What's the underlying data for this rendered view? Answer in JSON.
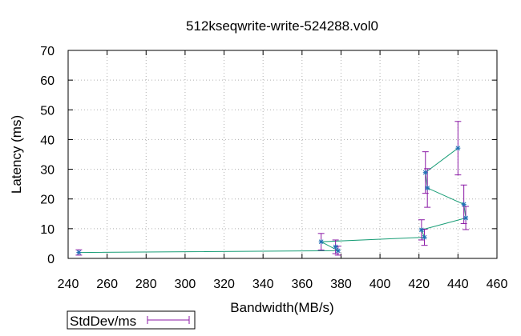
{
  "chart_data": {
    "type": "line",
    "title": "512kseqwrite-write-524288.vol0",
    "xlabel": "Bandwidth(MB/s)",
    "ylabel": "Latency (ms)",
    "xlim": [
      240,
      460
    ],
    "ylim": [
      0,
      70
    ],
    "x_ticks": [
      240,
      260,
      280,
      300,
      320,
      340,
      360,
      380,
      400,
      420,
      440,
      460
    ],
    "y_ticks": [
      0,
      10,
      20,
      30,
      40,
      50,
      60,
      70
    ],
    "grid": true,
    "legend_position": "bottom-left",
    "colors": {
      "line": "#1a9e77",
      "errorbar": "#8b1aa6",
      "marker": "#1f6fb4",
      "grid": "#b0b0b0"
    },
    "series": [
      {
        "name": "StdDev/ms",
        "points": [
          {
            "x": 245.5,
            "y": 2.0,
            "err": 0.9
          },
          {
            "x": 378.5,
            "y": 2.6,
            "err": 1.5
          },
          {
            "x": 377.2,
            "y": 3.9,
            "err": 2.3
          },
          {
            "x": 369.8,
            "y": 5.6,
            "err": 2.8
          },
          {
            "x": 422.8,
            "y": 7.1,
            "err": 2.7
          },
          {
            "x": 421.3,
            "y": 9.6,
            "err": 3.4
          },
          {
            "x": 444.0,
            "y": 13.6,
            "err": 3.9
          },
          {
            "x": 443.0,
            "y": 18.2,
            "err": 6.5
          },
          {
            "x": 424.3,
            "y": 23.7,
            "err": 6.5
          },
          {
            "x": 423.3,
            "y": 28.9,
            "err": 7.0
          },
          {
            "x": 440.0,
            "y": 37.1,
            "err": 9.0
          }
        ],
        "line_order": [
          0,
          1,
          3,
          4,
          5,
          6,
          7,
          8,
          9,
          10
        ]
      }
    ]
  }
}
